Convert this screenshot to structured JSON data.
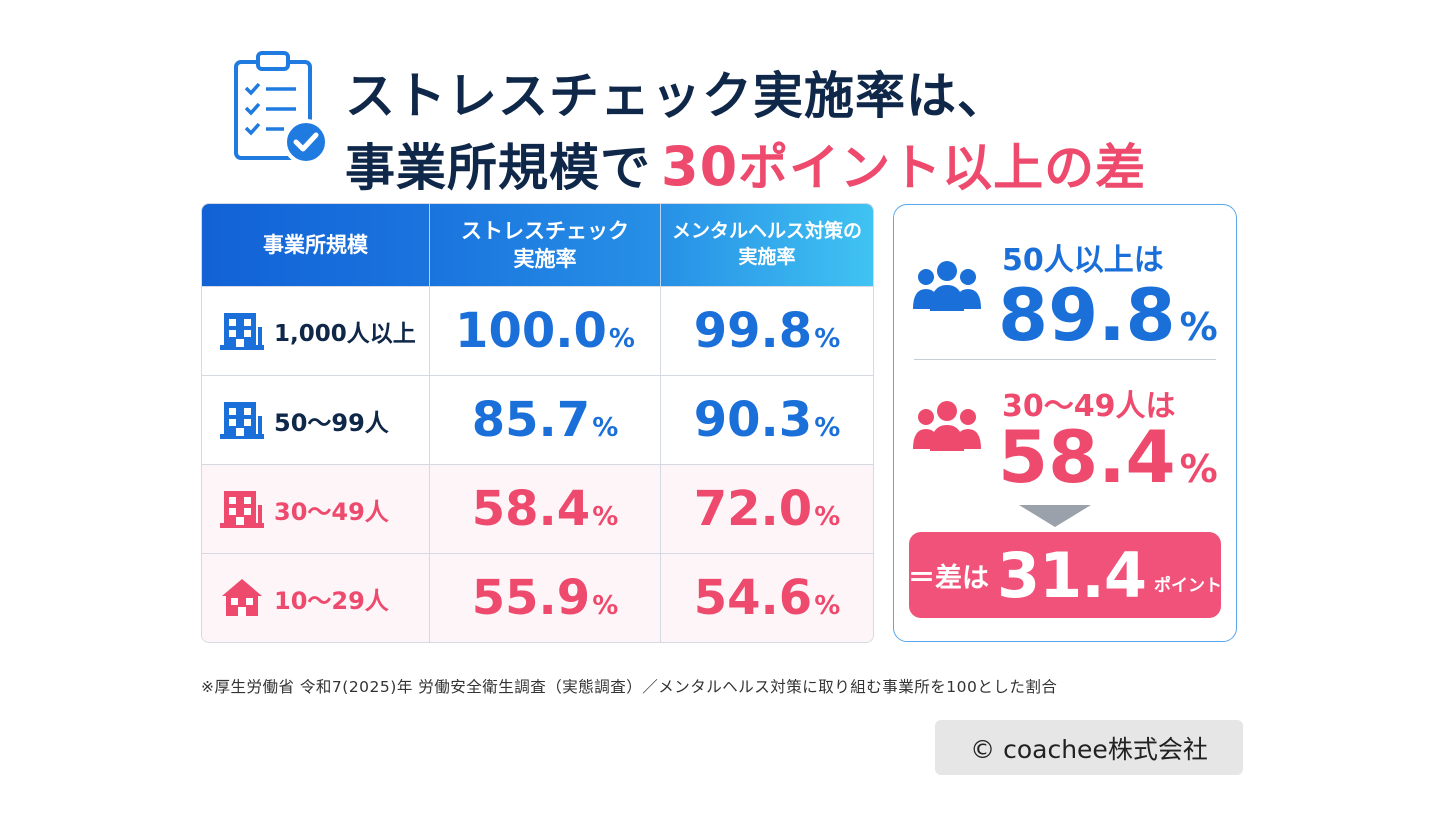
{
  "title": {
    "line1": "ストレスチェック実施率は、",
    "line2_prefix": "事業所規模で",
    "line2_highlight_num": "30",
    "line2_highlight_text": "ポイント以上の差"
  },
  "colors": {
    "navy": "#0f2748",
    "blue": "#1a6fd8",
    "pink": "#ee4a6d",
    "header_gradient_start": "#1262d6",
    "header_gradient_end": "#40c3f2",
    "diff_box": "#f0527a"
  },
  "chart_data": {
    "type": "table",
    "columns": [
      "事業所規模",
      "ストレスチェック\n実施率",
      "メンタルヘルス対策の\n実施率"
    ],
    "rows": [
      {
        "category": "1,000人以上",
        "icon": "office-building-icon",
        "stress_check": "100.0",
        "mental_health": "99.8",
        "color": "blue"
      },
      {
        "category": "50～99人",
        "icon": "office-building-icon",
        "stress_check": "85.7",
        "mental_health": "90.3",
        "color": "blue"
      },
      {
        "category": "30～49人",
        "icon": "office-building-icon",
        "stress_check": "58.4",
        "mental_health": "72.0",
        "color": "pink"
      },
      {
        "category": "10～29人",
        "icon": "house-icon",
        "stress_check": "55.9",
        "mental_health": "54.6",
        "color": "pink"
      }
    ],
    "unit": "%"
  },
  "summary": {
    "group1_label": "50人以上は",
    "group1_value": "89.8",
    "group2_label": "30～49人は",
    "group2_value": "58.4",
    "unit": "%",
    "diff_prefix": "＝差は",
    "diff_value": "31.4",
    "diff_unit": "ポイント"
  },
  "footer": {
    "source": "※厚生労働省 令和7(2025)年 労働安全衛生調査（実態調査）／メンタルヘルス対策に取り組む事業所を100とした割合",
    "copyright": "© coachee株式会社"
  }
}
